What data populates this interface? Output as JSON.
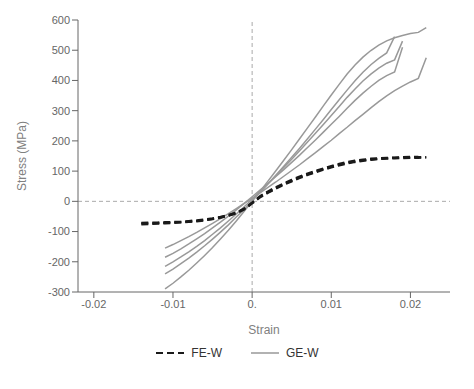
{
  "chart_data": {
    "type": "line",
    "title": "",
    "xlabel": "Strain",
    "ylabel": "Stress (MPa)",
    "xlim": [
      -0.022,
      0.025
    ],
    "ylim": [
      -300,
      600
    ],
    "xticks": [
      -0.02,
      -0.01,
      {
        "value": 0,
        "label": "0."
      },
      0.01,
      0.02
    ],
    "yticks": [
      -300,
      -200,
      -100,
      0,
      100,
      200,
      300,
      400,
      500,
      600
    ],
    "vline_x": 0,
    "hline_y": 0,
    "series": [
      {
        "name": "FE-W",
        "color": "#1a1a1a",
        "line_style": "dashed",
        "x": [
          -0.014,
          -0.013,
          -0.012,
          -0.011,
          -0.01,
          -0.009,
          -0.008,
          -0.007,
          -0.006,
          -0.005,
          -0.004,
          -0.003,
          -0.002,
          -0.001,
          0.0,
          0.001,
          0.002,
          0.003,
          0.004,
          0.005,
          0.006,
          0.007,
          0.008,
          0.009,
          0.01,
          0.011,
          0.012,
          0.013,
          0.014,
          0.015,
          0.016,
          0.017,
          0.018,
          0.019,
          0.02,
          0.021,
          0.022
        ],
        "values": [
          -73,
          -73,
          -72,
          -71,
          -70,
          -69,
          -67,
          -65,
          -62,
          -58,
          -53,
          -47,
          -38,
          -25,
          -5,
          15,
          30,
          44,
          57,
          68,
          79,
          89,
          98,
          107,
          114,
          121,
          127,
          132,
          136,
          139,
          141,
          143,
          144,
          145,
          145,
          146,
          146
        ]
      },
      {
        "name": "FE-W",
        "color": "#1a1a1a",
        "line_style": "dashed",
        "x": [
          -0.014,
          -0.013,
          -0.012,
          -0.011,
          -0.01,
          -0.009,
          -0.008,
          -0.007,
          -0.006,
          -0.005,
          -0.004,
          -0.003,
          -0.002,
          -0.001,
          0.0,
          0.001,
          0.002,
          0.003,
          0.004,
          0.005,
          0.006,
          0.007,
          0.008,
          0.009,
          0.01,
          0.011,
          0.012,
          0.013,
          0.014,
          0.015,
          0.016,
          0.017,
          0.018,
          0.019,
          0.02,
          0.021,
          0.022
        ],
        "values": [
          -76,
          -75,
          -74,
          -73,
          -72,
          -70,
          -68,
          -66,
          -63,
          -59,
          -54,
          -48,
          -40,
          -27,
          -7,
          13,
          28,
          42,
          55,
          66,
          77,
          87,
          96,
          105,
          112,
          119,
          125,
          130,
          134,
          137,
          140,
          141,
          142,
          143,
          144,
          144,
          145
        ]
      },
      {
        "name": "FE-W",
        "color": "#1a1a1a",
        "line_style": "dashed",
        "x": [
          -0.014,
          -0.013,
          -0.012,
          -0.011,
          -0.01,
          -0.009,
          -0.008,
          -0.007,
          -0.006,
          -0.005,
          -0.004,
          -0.003,
          -0.002,
          -0.001,
          0.0,
          0.001,
          0.002,
          0.003,
          0.004,
          0.005,
          0.006,
          0.007,
          0.008,
          0.009,
          0.01,
          0.011,
          0.012,
          0.013,
          0.014,
          0.015,
          0.016,
          0.017,
          0.018,
          0.019,
          0.02,
          0.021
        ],
        "values": [
          -71,
          -70,
          -70,
          -69,
          -68,
          -67,
          -65,
          -63,
          -60,
          -56,
          -51,
          -45,
          -37,
          -24,
          -4,
          17,
          33,
          47,
          59,
          71,
          82,
          92,
          101,
          109,
          117,
          124,
          130,
          135,
          138,
          141,
          143,
          144,
          145,
          146,
          147,
          147
        ]
      },
      {
        "name": "GE-W",
        "color": "#999999",
        "line_style": "solid",
        "x": [
          -0.011,
          -0.01,
          -0.009,
          -0.008,
          -0.007,
          -0.006,
          -0.005,
          -0.004,
          -0.003,
          -0.002,
          -0.001,
          0.0,
          0.001,
          0.002,
          0.003,
          0.004,
          0.005,
          0.006,
          0.007,
          0.008,
          0.009,
          0.01,
          0.011,
          0.012,
          0.013,
          0.014,
          0.015,
          0.016,
          0.017,
          0.018,
          0.019,
          0.02,
          0.021,
          0.022
        ],
        "values": [
          -155,
          -143,
          -130,
          -117,
          -103,
          -88,
          -73,
          -57,
          -41,
          -24,
          -7,
          10,
          28,
          46,
          64,
          83,
          102,
          121,
          141,
          161,
          182,
          202,
          224,
          245,
          267,
          288,
          309,
          330,
          349,
          366,
          381,
          395,
          407,
          475
        ]
      },
      {
        "name": "GE-W",
        "color": "#999999",
        "line_style": "solid",
        "x": [
          -0.011,
          -0.01,
          -0.009,
          -0.008,
          -0.007,
          -0.006,
          -0.005,
          -0.004,
          -0.003,
          -0.002,
          -0.001,
          0.0,
          0.001,
          0.002,
          0.003,
          0.004,
          0.005,
          0.006,
          0.007,
          0.008,
          0.009,
          0.01,
          0.011,
          0.012,
          0.013,
          0.014,
          0.015,
          0.016,
          0.017,
          0.018,
          0.019
        ],
        "values": [
          -185,
          -172,
          -157,
          -141,
          -124,
          -107,
          -88,
          -69,
          -49,
          -28,
          -7,
          15,
          37,
          59,
          82,
          105,
          129,
          153,
          178,
          203,
          229,
          255,
          281,
          308,
          334,
          358,
          380,
          400,
          416,
          428,
          510
        ]
      },
      {
        "name": "GE-W",
        "color": "#999999",
        "line_style": "solid",
        "x": [
          -0.011,
          -0.01,
          -0.009,
          -0.008,
          -0.007,
          -0.006,
          -0.005,
          -0.004,
          -0.003,
          -0.002,
          -0.001,
          0.0,
          0.001,
          0.002,
          0.003,
          0.004,
          0.005,
          0.006,
          0.007,
          0.008,
          0.009,
          0.01,
          0.011,
          0.012,
          0.013,
          0.014,
          0.015,
          0.016,
          0.017,
          0.018,
          0.019
        ],
        "values": [
          -215,
          -200,
          -184,
          -167,
          -149,
          -130,
          -109,
          -88,
          -65,
          -42,
          -18,
          7,
          32,
          58,
          85,
          112,
          139,
          167,
          196,
          225,
          254,
          284,
          314,
          344,
          372,
          398,
          421,
          441,
          457,
          468,
          530
        ]
      },
      {
        "name": "GE-W",
        "color": "#999999",
        "line_style": "solid",
        "x": [
          -0.011,
          -0.01,
          -0.009,
          -0.008,
          -0.007,
          -0.006,
          -0.005,
          -0.004,
          -0.003,
          -0.002,
          -0.001,
          0.0,
          0.001,
          0.002,
          0.003,
          0.004,
          0.005,
          0.006,
          0.007,
          0.008,
          0.009,
          0.01,
          0.011,
          0.012,
          0.013,
          0.014,
          0.015,
          0.016,
          0.017,
          0.018
        ],
        "values": [
          -240,
          -224,
          -206,
          -188,
          -168,
          -147,
          -125,
          -102,
          -78,
          -52,
          -26,
          2,
          29,
          57,
          86,
          116,
          146,
          176,
          207,
          239,
          271,
          304,
          336,
          368,
          399,
          427,
          452,
          473,
          491,
          545
        ]
      },
      {
        "name": "GE-W",
        "color": "#999999",
        "line_style": "solid",
        "x": [
          -0.011,
          -0.01,
          -0.009,
          -0.008,
          -0.007,
          -0.006,
          -0.005,
          -0.004,
          -0.003,
          -0.002,
          -0.001,
          0.0,
          0.001,
          0.002,
          0.003,
          0.004,
          0.005,
          0.006,
          0.007,
          0.008,
          0.009,
          0.01,
          0.011,
          0.012,
          0.013,
          0.014,
          0.015,
          0.016,
          0.017,
          0.018,
          0.019,
          0.02,
          0.021,
          0.022
        ],
        "values": [
          -290,
          -271,
          -250,
          -228,
          -204,
          -179,
          -153,
          -125,
          -96,
          -65,
          -33,
          0,
          33,
          67,
          101,
          136,
          171,
          207,
          243,
          279,
          316,
          352,
          387,
          421,
          451,
          477,
          499,
          517,
          531,
          541,
          549,
          555,
          559,
          575
        ]
      }
    ]
  }
}
